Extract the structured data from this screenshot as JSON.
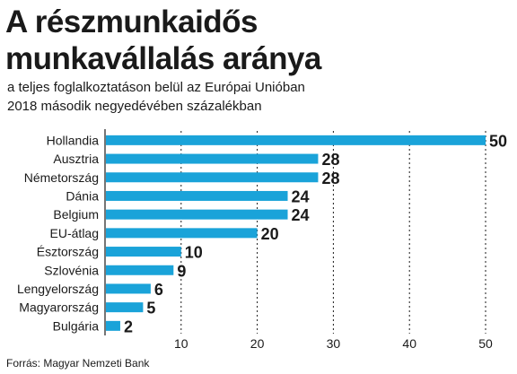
{
  "header": {
    "title_line1": "A részmunkaidős",
    "title_line2": "munkavállalás aránya",
    "subtitle_line1": "a teljes foglalkoztatáson belül az Európai Unióban",
    "subtitle_line2": "2018 második negyedévében százalékban"
  },
  "footer": {
    "source": "Forrás: Magyar Nemzeti Bank"
  },
  "colors": {
    "bar": "#1aa3d9",
    "text": "#1a1a1a",
    "grid": "#1a1a1a"
  },
  "chart_data": {
    "type": "bar",
    "orientation": "horizontal",
    "categories": [
      "Hollandia",
      "Ausztria",
      "Németország",
      "Dánia",
      "Belgium",
      "EU-átlag",
      "Észtország",
      "Szlovénia",
      "Lengyelország",
      "Magyarország",
      "Bulgária"
    ],
    "values": [
      50,
      28,
      28,
      24,
      24,
      20,
      10,
      9,
      6,
      5,
      2
    ],
    "xlim": [
      0,
      50
    ],
    "xticks": [
      10,
      20,
      30,
      40,
      50
    ],
    "grid": "vertical dashed",
    "data_labels": true
  }
}
